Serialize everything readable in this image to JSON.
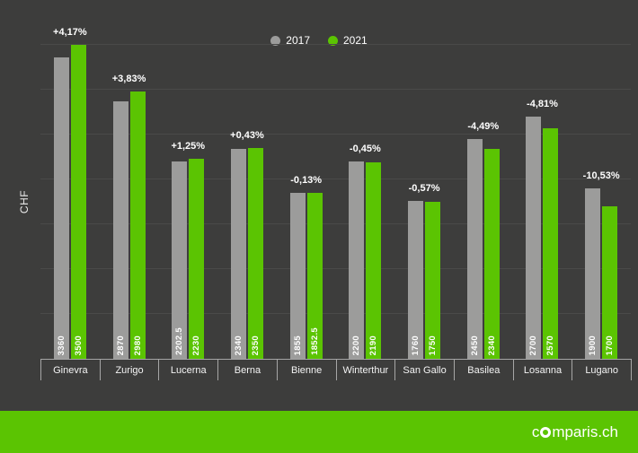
{
  "page": {
    "background": "#3d3d3c"
  },
  "legend": {
    "items": [
      {
        "label": "2017",
        "color": "#9c9c9b"
      },
      {
        "label": "2021",
        "color": "#5bc402"
      }
    ]
  },
  "chart_data": {
    "type": "bar",
    "title": "",
    "ylabel": "CHF",
    "ylim": [
      0,
      3500
    ],
    "grid_step": 500,
    "grid": true,
    "legend_position": "top-center",
    "categories": [
      "Ginevra",
      "Zurigo",
      "Lucerna",
      "Berna",
      "Bienne",
      "Winterthur",
      "San Gallo",
      "Basilea",
      "Losanna",
      "Lugano"
    ],
    "series": [
      {
        "name": "2017",
        "color": "#9c9c9b",
        "values": [
          3360,
          2870,
          2202.5,
          2340,
          1855,
          2200,
          1760,
          2450,
          2700,
          1900
        ],
        "labels": [
          "3360",
          "2870",
          "2202.5",
          "2340",
          "1855",
          "2200",
          "1760",
          "2450",
          "2700",
          "1900"
        ]
      },
      {
        "name": "2021",
        "color": "#5bc402",
        "values": [
          3500,
          2980,
          2230,
          2350,
          1852.5,
          2190,
          1750,
          2340,
          2570,
          1700
        ],
        "labels": [
          "3500",
          "2980",
          "2230",
          "2350",
          "1852.5",
          "2190",
          "1750",
          "2340",
          "2570",
          "1700"
        ]
      }
    ],
    "change_labels": [
      "+4,17%",
      "+3,83%",
      "+1,25%",
      "+0,43%",
      "-0,13%",
      "-0,45%",
      "-0,57%",
      "-4,49%",
      "-4,81%",
      "-10,53%"
    ]
  },
  "footer": {
    "background": "#5bc402",
    "logo_prefix": "c",
    "logo_suffix": "mparis.ch"
  }
}
